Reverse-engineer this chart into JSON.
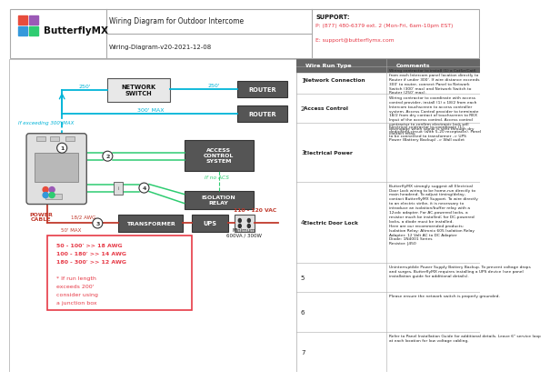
{
  "title": "Wiring Diagram for Outdoor Intercome",
  "subtitle": "Wiring-Diagram-v20-2021-12-08",
  "support_line1": "SUPPORT:",
  "support_line2": "P: (877) 480-6379 ext. 2 (Mon-Fri, 6am-10pm EST)",
  "support_line3": "E: support@butterflymx.com",
  "logo_text": "ButterflyMX",
  "bg_color": "#ffffff",
  "cyan": "#00b4d8",
  "red": "#e63946",
  "green": "#2ecc71",
  "dark_red": "#c0392b",
  "dark_gray": "#555555",
  "table_rows": [
    {
      "num": "1",
      "type": "Network Connection",
      "comment": "Wiring contractor to install (1) a Cat5e/Cat6\nfrom each Intercom panel location directly to\nRouter if under 300'. If wire distance exceeds\n300' to router, connect Panel to Network\nSwitch (300' max) and Network Switch to\nRouter (250' max)."
    },
    {
      "num": "2",
      "type": "Access Control",
      "comment": "Wiring contractor to coordinate with access\ncontrol provider, install (1) x 18/2 from each\nIntercom touchscreen to access controller\nsystem. Access Control provider to terminate\n18/2 from dry contact of touchscreen to REX\nInput of the access control. Access control\ncontractor to confirm electronic lock will\ndisengage when signal is sent through dry\ncontact relay."
    },
    {
      "num": "3",
      "type": "Electrical Power",
      "comment": "Electrical contractor to coordinate (1)\ndedicated circuit (with 5-20 receptacle). Panel\nto be connected to transformer -> UPS\nPower (Battery Backup) -> Wall outlet"
    },
    {
      "num": "4",
      "type": "Electric Door Lock",
      "comment": "ButterflyMX strongly suggest all Electrical\nDoor Lock wiring to be home-run directly to\nmain headend. To adjust timing/delay,\ncontact ButterflyMX Support. To wire directly\nto an electric strike, it is necessary to\nintroduce an isolation/buffer relay with a\n12vdc adapter. For AC-powered locks, a\nresistor much be installed; for DC-powered\nlocks, a diode must be installed.\nHere are our recommended products:\nIsolation Relay: Altronix 605 Isolation Relay\nAdapter: 12 Volt AC to DC Adapter\nDiode: 1N4001 Series\nResistor: J450"
    },
    {
      "num": "5",
      "type": "",
      "comment": "Uninterruptible Power Supply Battery Backup. To prevent voltage drops\nand surges, ButterflyMX requires installing a UPS device (see panel\ninstallation guide for additional details)."
    },
    {
      "num": "6",
      "type": "",
      "comment": "Please ensure the network switch is properly grounded."
    },
    {
      "num": "7",
      "type": "",
      "comment": "Refer to Panel Installation Guide for additional details. Leave 6\" service loop\nat each location for low voltage cabling."
    }
  ]
}
